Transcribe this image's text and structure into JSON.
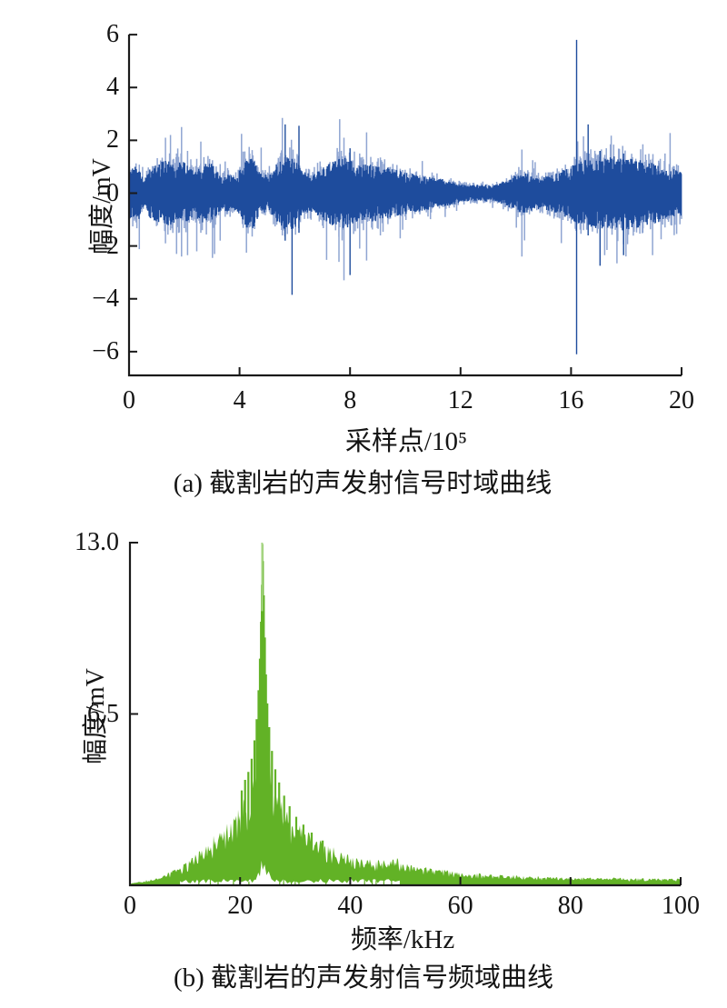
{
  "figure": {
    "background": "#ffffff",
    "axis_color": "#1a1a1a"
  },
  "chart_data": [
    {
      "id": "a",
      "type": "line",
      "series_name": "acoustic-emission time-domain signal",
      "title": "",
      "xlabel": "采样点/10⁵",
      "ylabel": "幅度/mV",
      "caption": "(a) 截割岩的声发射信号时域曲线",
      "xlim": [
        0,
        20
      ],
      "ylim": [
        -6.9,
        6
      ],
      "grid": false,
      "legend": "none",
      "xticks": [
        {
          "v": 0,
          "label": "0"
        },
        {
          "v": 4,
          "label": "4"
        },
        {
          "v": 8,
          "label": "8"
        },
        {
          "v": 12,
          "label": "12"
        },
        {
          "v": 16,
          "label": "16"
        },
        {
          "v": 20,
          "label": "20"
        }
      ],
      "yticks": [
        {
          "v": 6,
          "label": "6"
        },
        {
          "v": 4,
          "label": "4"
        },
        {
          "v": 2,
          "label": "2"
        },
        {
          "v": 0,
          "label": "0"
        },
        {
          "v": -2,
          "label": "−2"
        },
        {
          "v": -4,
          "label": "−4"
        },
        {
          "v": -6,
          "label": "−6"
        }
      ],
      "colors": {
        "dark": "#1e4c9d",
        "light": "#8fa5d2"
      },
      "noise_seed": 1337,
      "envelope_abs_mv": [
        [
          0,
          1.05
        ],
        [
          0.35,
          1.0
        ],
        [
          0.55,
          0.45
        ],
        [
          0.75,
          0.95
        ],
        [
          1.0,
          1.1
        ],
        [
          1.3,
          1.25
        ],
        [
          1.7,
          1.15
        ],
        [
          2.0,
          1.2
        ],
        [
          2.35,
          0.85
        ],
        [
          2.6,
          1.1
        ],
        [
          3.0,
          1.15
        ],
        [
          3.35,
          0.6
        ],
        [
          3.6,
          0.75
        ],
        [
          3.9,
          0.65
        ],
        [
          4.2,
          1.3
        ],
        [
          4.5,
          1.35
        ],
        [
          4.8,
          0.75
        ],
        [
          5.1,
          0.7
        ],
        [
          5.4,
          1.2
        ],
        [
          5.7,
          1.4
        ],
        [
          6.0,
          1.35
        ],
        [
          6.3,
          0.8
        ],
        [
          6.6,
          0.75
        ],
        [
          6.9,
          1.0
        ],
        [
          7.2,
          1.15
        ],
        [
          7.5,
          1.3
        ],
        [
          7.8,
          1.35
        ],
        [
          8.1,
          1.2
        ],
        [
          8.5,
          1.1
        ],
        [
          9.0,
          1.05
        ],
        [
          9.5,
          0.95
        ],
        [
          10.0,
          0.8
        ],
        [
          10.5,
          0.7
        ],
        [
          11.0,
          0.6
        ],
        [
          11.5,
          0.5
        ],
        [
          12.0,
          0.35
        ],
        [
          12.4,
          0.3
        ],
        [
          12.8,
          0.35
        ],
        [
          13.2,
          0.3
        ],
        [
          13.6,
          0.45
        ],
        [
          14.0,
          0.7
        ],
        [
          14.3,
          0.8
        ],
        [
          14.7,
          0.6
        ],
        [
          15.1,
          0.65
        ],
        [
          15.5,
          0.8
        ],
        [
          15.9,
          0.95
        ],
        [
          16.3,
          1.2
        ],
        [
          16.7,
          1.3
        ],
        [
          17.1,
          1.35
        ],
        [
          17.5,
          1.45
        ],
        [
          18.0,
          1.4
        ],
        [
          18.5,
          1.3
        ],
        [
          19.0,
          1.15
        ],
        [
          19.5,
          1.0
        ],
        [
          20,
          0.9
        ]
      ],
      "light_spikes_mv": [
        [
          1.32,
          2.1,
          -1.9
        ],
        [
          1.5,
          2.2,
          -1.4
        ],
        [
          1.72,
          1.5,
          -2.3
        ],
        [
          1.9,
          2.5,
          -2.4
        ],
        [
          2.12,
          1.6,
          -2.35
        ],
        [
          2.45,
          1.3,
          -2.2
        ],
        [
          2.6,
          1.95,
          -1.5
        ],
        [
          3.02,
          1.25,
          -2.45
        ],
        [
          3.3,
          1.1,
          -1.8
        ],
        [
          4.35,
          1.75,
          -1.3
        ],
        [
          5.55,
          2.85,
          -1.6
        ],
        [
          7.6,
          1.4,
          -2.6
        ],
        [
          7.78,
          2.1,
          -3.3
        ],
        [
          8.35,
          1.5,
          -2.1
        ],
        [
          8.6,
          2.3,
          -2.55
        ],
        [
          9.1,
          1.35,
          -1.6
        ],
        [
          14.22,
          1.65,
          -2.4
        ],
        [
          16.45,
          2.15,
          -1.4
        ],
        [
          17.3,
          1.3,
          -2.15
        ],
        [
          18.6,
          1.85,
          -1.5
        ],
        [
          18.95,
          1.3,
          -2.35
        ],
        [
          19.4,
          1.5,
          -1.3
        ]
      ],
      "dark_spikes_mv": [
        [
          5.65,
          2.6,
          -1.8
        ],
        [
          5.9,
          1.3,
          -3.85
        ],
        [
          6.15,
          2.55,
          -1.5
        ],
        [
          8.0,
          1.7,
          -3.1
        ],
        [
          16.2,
          5.8,
          -6.1
        ],
        [
          16.62,
          2.6,
          -1.6
        ],
        [
          17.05,
          1.6,
          -2.75
        ],
        [
          17.9,
          1.5,
          -2.35
        ]
      ]
    },
    {
      "id": "b",
      "type": "area",
      "series_name": "acoustic-emission frequency spectrum",
      "title": "",
      "xlabel": "频率/kHz",
      "ylabel": "幅度/mV",
      "caption": "(b) 截割岩的声发射信号频域曲线",
      "xlim": [
        0,
        100
      ],
      "ylim": [
        0,
        13
      ],
      "grid": false,
      "legend": "none",
      "xticks": [
        {
          "v": 0,
          "label": "0"
        },
        {
          "v": 20,
          "label": "20"
        },
        {
          "v": 40,
          "label": "40"
        },
        {
          "v": 60,
          "label": "60"
        },
        {
          "v": 80,
          "label": "80"
        },
        {
          "v": 100,
          "label": "100"
        }
      ],
      "yticks": [
        {
          "v": 13,
          "label": "13.0"
        },
        {
          "v": 6.5,
          "label": "6.5"
        }
      ],
      "colors": {
        "fill": "#62b226",
        "tip": "#a9d787"
      },
      "noise_seed": 77,
      "dominant_peak": {
        "freq_khz": 24,
        "amplitude_mv": 13.0
      },
      "envelope_mv": [
        [
          0,
          0.05
        ],
        [
          1,
          0.12
        ],
        [
          2,
          0.15
        ],
        [
          3,
          0.2
        ],
        [
          4,
          0.25
        ],
        [
          5,
          0.3
        ],
        [
          6,
          0.38
        ],
        [
          7,
          0.5
        ],
        [
          8,
          0.6
        ],
        [
          9,
          0.7
        ],
        [
          10,
          0.85
        ],
        [
          11,
          1.0
        ],
        [
          12,
          1.25
        ],
        [
          13,
          1.45
        ],
        [
          14,
          1.6
        ],
        [
          15,
          1.8
        ],
        [
          16,
          2.0
        ],
        [
          17,
          2.2
        ],
        [
          18,
          2.5
        ],
        [
          19,
          2.7
        ],
        [
          20,
          3.0
        ],
        [
          21,
          3.3
        ],
        [
          22,
          3.8
        ],
        [
          23,
          4.8
        ],
        [
          23.5,
          6.5
        ],
        [
          23.8,
          9.0
        ],
        [
          24.05,
          13.0
        ],
        [
          24.3,
          10.5
        ],
        [
          24.6,
          7.5
        ],
        [
          25,
          5.8
        ],
        [
          25.6,
          4.6
        ],
        [
          26.5,
          3.8
        ],
        [
          28,
          3.2
        ],
        [
          29,
          2.8
        ],
        [
          30,
          2.5
        ],
        [
          32,
          2.1
        ],
        [
          34,
          1.8
        ],
        [
          36,
          1.5
        ],
        [
          38,
          1.3
        ],
        [
          40,
          1.15
        ],
        [
          42,
          1.0
        ],
        [
          44,
          0.95
        ],
        [
          46,
          1.0
        ],
        [
          48,
          1.05
        ],
        [
          50,
          0.85
        ],
        [
          53,
          0.7
        ],
        [
          56,
          0.6
        ],
        [
          60,
          0.5
        ],
        [
          65,
          0.42
        ],
        [
          70,
          0.38
        ],
        [
          75,
          0.33
        ],
        [
          80,
          0.3
        ],
        [
          85,
          0.28
        ],
        [
          90,
          0.28
        ],
        [
          95,
          0.26
        ],
        [
          100,
          0.25
        ]
      ],
      "peak_spikes_mv": [
        [
          20.3,
          3.6
        ],
        [
          20.9,
          4.0
        ],
        [
          21.5,
          4.3
        ],
        [
          22.1,
          4.8
        ],
        [
          22.6,
          5.5
        ],
        [
          23.0,
          6.3
        ],
        [
          23.35,
          7.4
        ],
        [
          23.6,
          8.6
        ],
        [
          23.8,
          10.0
        ],
        [
          23.95,
          11.4
        ],
        [
          24.05,
          12.95
        ],
        [
          24.15,
          12.3
        ],
        [
          24.3,
          11.0
        ],
        [
          24.5,
          9.4
        ],
        [
          24.7,
          8.0
        ],
        [
          24.95,
          6.9
        ],
        [
          25.3,
          6.0
        ],
        [
          25.8,
          5.1
        ],
        [
          26.4,
          4.4
        ],
        [
          27.1,
          3.9
        ],
        [
          28,
          3.4
        ],
        [
          29,
          3.0
        ],
        [
          30.2,
          2.6
        ],
        [
          31.5,
          2.3
        ],
        [
          33,
          2.0
        ],
        [
          35,
          1.7
        ]
      ],
      "white_notch_mv": [
        [
          22.4,
          0
        ],
        [
          22.9,
          0.2
        ],
        [
          23.3,
          0.45
        ],
        [
          23.6,
          0.3
        ],
        [
          23.9,
          0.9
        ],
        [
          24.1,
          0.55
        ],
        [
          24.45,
          0.75
        ],
        [
          24.8,
          0.35
        ],
        [
          25.2,
          0.5
        ],
        [
          25.7,
          0.2
        ],
        [
          26.3,
          0.1
        ],
        [
          27,
          0
        ]
      ],
      "baseline_gap_khz": {
        "from": 9,
        "to": 49
      }
    }
  ]
}
